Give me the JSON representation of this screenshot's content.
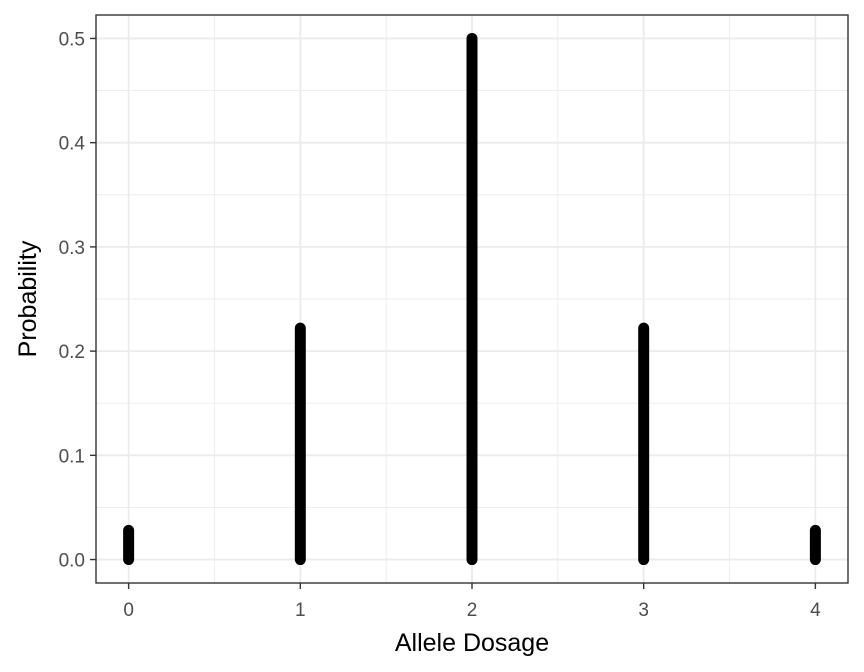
{
  "chart_data": {
    "type": "scatter",
    "title": "",
    "xlabel": "Allele Dosage",
    "ylabel": "Probability",
    "xlim": [
      -0.19,
      4.19
    ],
    "ylim": [
      -0.0225,
      0.5225
    ],
    "x_ticks": [
      0,
      1,
      2,
      3,
      4
    ],
    "x_tick_labels": [
      "0",
      "1",
      "2",
      "3",
      "4"
    ],
    "y_ticks": [
      0.0,
      0.1,
      0.2,
      0.3,
      0.4,
      0.5
    ],
    "y_tick_labels": [
      "0.0",
      "0.1",
      "0.2",
      "0.3",
      "0.4",
      "0.5"
    ],
    "grid": true,
    "legend": "none",
    "colors": {
      "points": "#000000",
      "grid": "#ebebeb",
      "panel_border": "#333333"
    },
    "series": [
      {
        "x": [
          0,
          1,
          2,
          3,
          4
        ],
        "y_max": [
          0.028,
          0.222,
          0.5,
          0.222,
          0.028
        ],
        "y_min": [
          0,
          0,
          0,
          0,
          0
        ]
      }
    ]
  }
}
